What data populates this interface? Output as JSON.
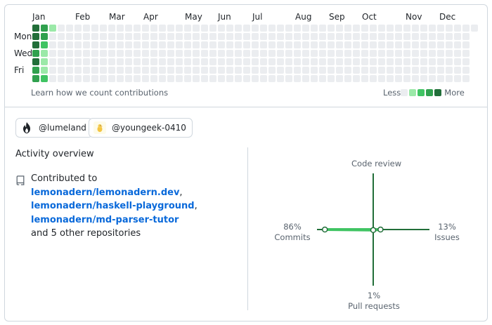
{
  "calendar": {
    "months": [
      "Jan",
      "Feb",
      "Mar",
      "Apr",
      "May",
      "Jun",
      "Jul",
      "Aug",
      "Sep",
      "Oct",
      "Nov",
      "Dec"
    ],
    "day_labels": [
      "Mon",
      "Wed",
      "Fri"
    ],
    "learn_link": "Learn how we count contributions",
    "legend_less": "Less",
    "legend_more": "More",
    "colors": {
      "empty": "#ebedf0",
      "level1": "#9be9a8",
      "level2": "#40c463",
      "level3": "#30a14e",
      "level4": "#216e39"
    },
    "active_weeks": [
      {
        "week": 0,
        "levels": [
          4,
          4,
          4,
          3,
          4,
          3,
          3
        ]
      },
      {
        "week": 1,
        "levels": [
          3,
          3,
          2,
          1,
          1,
          1,
          2
        ]
      },
      {
        "week": 2,
        "levels": [
          1,
          0,
          0,
          0,
          0,
          0,
          0
        ]
      }
    ],
    "total_weeks": 53
  },
  "orgs": [
    {
      "name": "@lumeland",
      "icon": "flame-icon"
    },
    {
      "name": "@youngeek-0410",
      "icon": "chick-icon"
    }
  ],
  "activity": {
    "title": "Activity overview",
    "contributed_prefix": "Contributed to",
    "repos": [
      "lemonadern/lemonadern.dev",
      "lemonadern/haskell-playground",
      "lemonadern/md-parser-tutor"
    ],
    "separator": ",",
    "others": "and 5 other repositories"
  },
  "chart_data": {
    "type": "radar",
    "axes": [
      {
        "label": "Code review",
        "percent": "",
        "value": 0
      },
      {
        "label": "Issues",
        "percent": "13%",
        "value": 13
      },
      {
        "label": "Pull requests",
        "percent": "1%",
        "value": 1
      },
      {
        "label": "Commits",
        "percent": "86%",
        "value": 86
      }
    ],
    "color": "#216e39",
    "fill": "#40c463"
  }
}
